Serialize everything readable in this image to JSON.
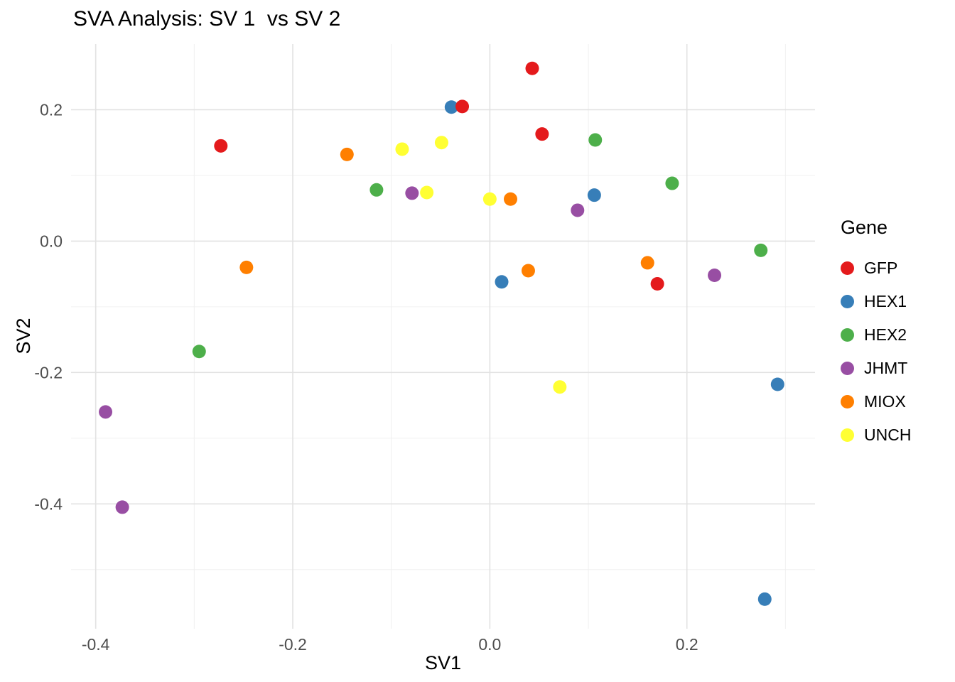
{
  "title": "SVA Analysis: SV 1  vs SV 2",
  "chart_data": {
    "type": "scatter",
    "title": "SVA Analysis: SV 1  vs SV 2",
    "xlabel": "SV1",
    "ylabel": "SV2",
    "xlim": [
      -0.425,
      0.33
    ],
    "ylim": [
      -0.59,
      0.3
    ],
    "grid": true,
    "x_ticks": [
      -0.4,
      -0.2,
      0.0,
      0.2
    ],
    "x_tick_labels": [
      "-0.4",
      "-0.2",
      "0.0",
      "0.2"
    ],
    "y_ticks": [
      0.2,
      0.0,
      -0.2,
      -0.4
    ],
    "y_tick_labels": [
      "0.2",
      "0.0",
      "-0.2",
      "-0.4"
    ],
    "x_minor_ticks": [
      -0.3,
      -0.1,
      0.1,
      0.3
    ],
    "y_minor_ticks": [
      0.1,
      -0.1,
      -0.3,
      -0.5
    ],
    "legend_title": "Gene",
    "legend_position": "right",
    "point_radius": 9.5,
    "grid_major_color": "#e2e2e2",
    "grid_minor_color": "#f0f0f0",
    "series": [
      {
        "name": "GFP",
        "color": "#E41A1C",
        "points": [
          [
            0.043,
            0.263
          ],
          [
            -0.028,
            0.205
          ],
          [
            0.053,
            0.163
          ],
          [
            -0.273,
            0.145
          ],
          [
            0.17,
            -0.065
          ]
        ]
      },
      {
        "name": "HEX1",
        "color": "#377EB8",
        "points": [
          [
            -0.039,
            0.204
          ],
          [
            0.106,
            0.07
          ],
          [
            0.012,
            -0.062
          ],
          [
            0.292,
            -0.218
          ],
          [
            0.279,
            -0.545
          ]
        ]
      },
      {
        "name": "HEX2",
        "color": "#4DAF4A",
        "points": [
          [
            0.107,
            0.154
          ],
          [
            0.185,
            0.088
          ],
          [
            -0.115,
            0.078
          ],
          [
            0.275,
            -0.014
          ],
          [
            -0.295,
            -0.168
          ]
        ]
      },
      {
        "name": "JHMT",
        "color": "#984EA3",
        "points": [
          [
            -0.079,
            0.073
          ],
          [
            0.089,
            0.047
          ],
          [
            0.228,
            -0.052
          ],
          [
            -0.39,
            -0.26
          ],
          [
            -0.373,
            -0.405
          ]
        ]
      },
      {
        "name": "MIOX",
        "color": "#FF7F00",
        "points": [
          [
            -0.145,
            0.132
          ],
          [
            0.021,
            0.064
          ],
          [
            -0.247,
            -0.04
          ],
          [
            0.039,
            -0.045
          ],
          [
            0.16,
            -0.033
          ]
        ]
      },
      {
        "name": "UNCH",
        "color": "#FFFF33",
        "points": [
          [
            -0.089,
            0.14
          ],
          [
            -0.049,
            0.15
          ],
          [
            -0.064,
            0.074
          ],
          [
            0.0,
            0.064
          ],
          [
            0.071,
            -0.222
          ]
        ]
      }
    ]
  }
}
